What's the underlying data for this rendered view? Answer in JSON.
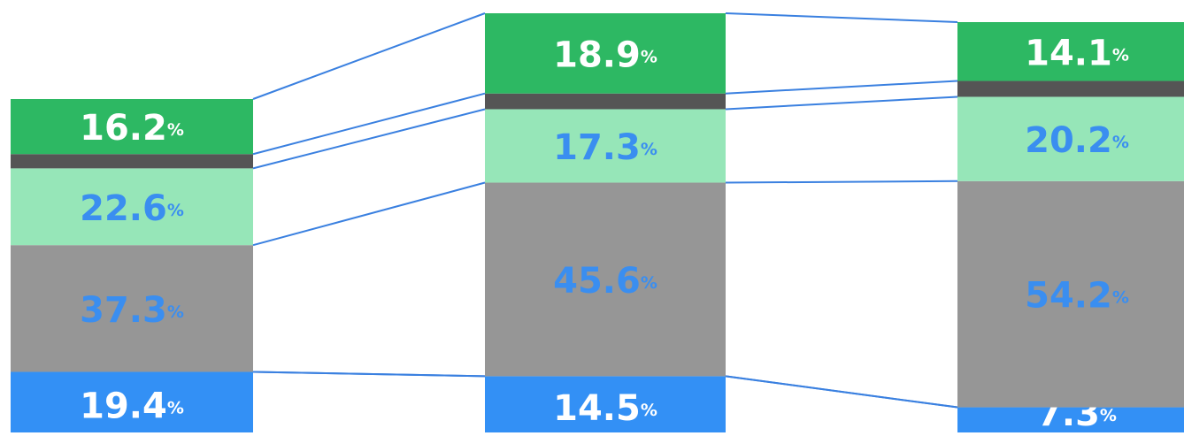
{
  "chart_data": {
    "type": "stacked-bar",
    "series": [
      {
        "color": "#3390f5",
        "values": [
          19.4,
          14.5,
          7.3
        ],
        "value_labels": [
          "19.4%",
          "14.5%",
          "7.3%"
        ],
        "label_color": "#ffffff"
      },
      {
        "color": "#969696",
        "values": [
          37.3,
          45.6,
          54.2
        ],
        "value_labels": [
          "37.3%",
          "45.6%",
          "54.2%"
        ],
        "label_color": "#3a8ef0"
      },
      {
        "color": "#96e6b8",
        "values": [
          22.6,
          17.3,
          20.2
        ],
        "value_labels": [
          "22.6%",
          "17.3%",
          "20.2%"
        ],
        "label_color": "#3a8ef0"
      },
      {
        "color": "#555555",
        "values": [
          4.2,
          3.7,
          3.8
        ],
        "value_labels": [
          null,
          null,
          null
        ]
      },
      {
        "color": "#2db863",
        "values": [
          16.2,
          18.9,
          14.1
        ],
        "value_labels": [
          "16.2%",
          "18.9%",
          "14.1%"
        ],
        "label_color": "#ffffff"
      }
    ]
  }
}
